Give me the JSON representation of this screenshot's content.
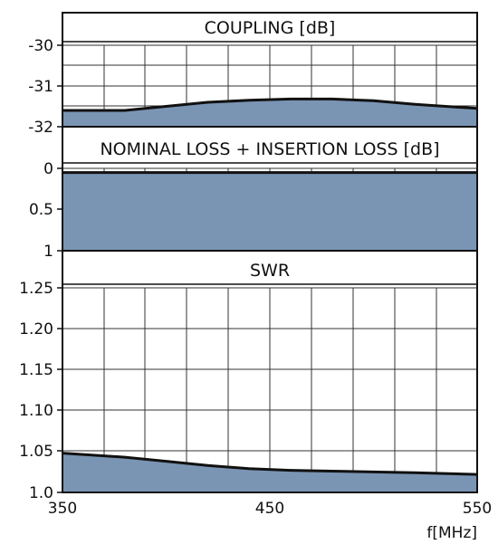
{
  "chart_data": [
    {
      "type": "area",
      "title": "COUPLING [dB]",
      "xlabel": "f[MHz]",
      "ylabel": "",
      "xlim": [
        350,
        550
      ],
      "ylim": [
        -32,
        -30
      ],
      "y_ticks": [
        "-30",
        "-31",
        "-32"
      ],
      "x": [
        350,
        380,
        400,
        420,
        440,
        460,
        480,
        500,
        520,
        550
      ],
      "values": [
        -31.6,
        -31.6,
        -31.5,
        -31.4,
        -31.35,
        -31.32,
        -31.32,
        -31.36,
        -31.45,
        -31.55
      ],
      "fill_color": "#7a94b4",
      "line_color": "#111111",
      "grid": true
    },
    {
      "type": "area",
      "title": "NOMINAL LOSS + INSERTION LOSS [dB]",
      "xlabel": "f[MHz]",
      "ylabel": "",
      "xlim": [
        350,
        550
      ],
      "ylim": [
        1,
        0
      ],
      "y_ticks": [
        "0",
        "0.5",
        "1"
      ],
      "x": [
        350,
        550
      ],
      "values": [
        0.05,
        0.05
      ],
      "fill_color": "#7a94b4",
      "line_color": "#111111",
      "grid": true
    },
    {
      "type": "area",
      "title": "SWR",
      "xlabel": "f[MHz]",
      "ylabel": "",
      "xlim": [
        350,
        550
      ],
      "ylim": [
        1.0,
        1.25
      ],
      "y_ticks": [
        "1.25",
        "1.20",
        "1.15",
        "1.10",
        "1.05",
        "1.0"
      ],
      "x": [
        350,
        380,
        400,
        420,
        440,
        460,
        480,
        500,
        520,
        550
      ],
      "values": [
        1.048,
        1.043,
        1.038,
        1.033,
        1.029,
        1.027,
        1.026,
        1.025,
        1.024,
        1.022
      ],
      "fill_color": "#7a94b4",
      "line_color": "#111111",
      "grid": true
    }
  ],
  "x_ticks": [
    "350",
    "450",
    "550"
  ],
  "x_unit": "f[MHz]"
}
